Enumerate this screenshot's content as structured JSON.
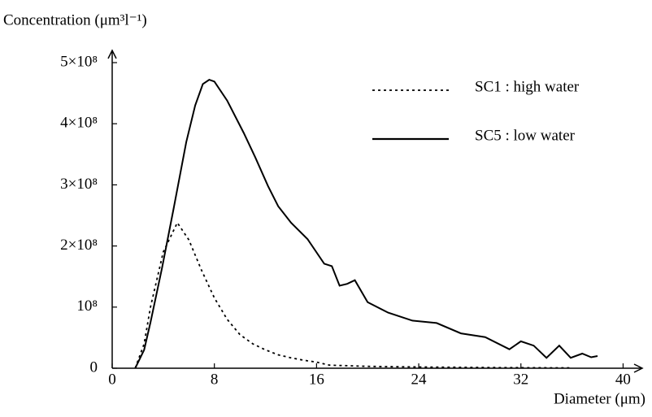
{
  "chart_data": {
    "type": "line",
    "title": "Concentration (μm³l⁻¹)",
    "x_label": "Diameter (μm)",
    "xlim": [
      0,
      41.5
    ],
    "ylim": [
      0,
      520000000
    ],
    "xticks": [
      0,
      8,
      16,
      24,
      32,
      40
    ],
    "yticks": [
      0,
      {
        "value": 100000000,
        "label": "10⁸"
      },
      {
        "value": 200000000,
        "label": "2×10⁸"
      },
      {
        "value": 300000000,
        "label": "3×10⁸"
      },
      {
        "value": 400000000,
        "label": "4×10⁸"
      },
      {
        "value": 500000000,
        "label": "5×10⁸"
      }
    ],
    "legend": "upper right",
    "series": [
      {
        "name": "SC1 : high water",
        "color": "#000000",
        "dash": "dotted",
        "x": [
          1.8,
          2.5,
          3,
          4,
          5.1,
          6,
          7,
          8,
          9,
          10,
          11,
          12,
          13,
          14,
          15,
          16,
          17,
          20,
          24,
          30,
          36
        ],
        "values": [
          0,
          40000000,
          100000000,
          190000000,
          238000000,
          210000000,
          160000000,
          115000000,
          80000000,
          55000000,
          40000000,
          30000000,
          22000000,
          17000000,
          13000000,
          10000000,
          5000000,
          3000000,
          2000000,
          1000000,
          500000
        ]
      },
      {
        "name": "SC5 : low water",
        "color": "#000000",
        "dash": "solid",
        "x": [
          1.8,
          2.5,
          3,
          3.9,
          4.8,
          5.8,
          6.5,
          7.1,
          7.6,
          8,
          9,
          10.3,
          11.2,
          12.2,
          13,
          14,
          15.3,
          16.6,
          17.2,
          17.8,
          18.4,
          19,
          20,
          21.6,
          23.5,
          25.4,
          27.3,
          29.2,
          31.1,
          32,
          33,
          34,
          35,
          35.9,
          36.8,
          37.5,
          38
        ],
        "values": [
          0,
          30000000,
          75000000,
          164000000,
          260000000,
          370000000,
          430000000,
          465000000,
          472000000,
          469000000,
          438000000,
          385000000,
          345000000,
          298000000,
          265000000,
          238000000,
          211000000,
          171000000,
          167000000,
          135000000,
          138000000,
          144000000,
          108000000,
          91000000,
          78000000,
          74000000,
          57000000,
          51000000,
          31000000,
          44000000,
          37000000,
          17000000,
          37000000,
          17000000,
          24000000,
          18000000,
          20000000
        ]
      }
    ]
  }
}
